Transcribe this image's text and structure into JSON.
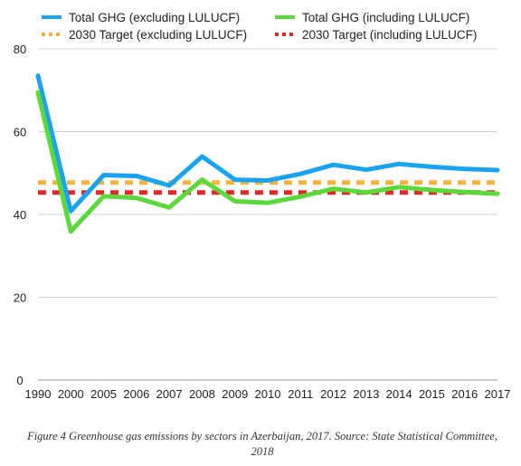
{
  "chart_data": {
    "type": "line",
    "title": "",
    "xlabel": "",
    "ylabel": "",
    "categories": [
      "1990",
      "2000",
      "2005",
      "2006",
      "2007",
      "2008",
      "2009",
      "2010",
      "2011",
      "2012",
      "2013",
      "2014",
      "2015",
      "2016",
      "2017"
    ],
    "ylim": [
      0,
      80
    ],
    "yticks": [
      "0",
      "20",
      "40",
      "60",
      "80"
    ],
    "grid": true,
    "legend_position": "top",
    "series": [
      {
        "name": "Total GHG (excluding LULUCF)",
        "color": "#1aa3f0",
        "style": "solid",
        "values": [
          73.5,
          40.8,
          49.5,
          49.3,
          47.0,
          54.0,
          48.4,
          48.2,
          49.8,
          52.0,
          50.8,
          52.2,
          51.5,
          51.0,
          50.7
        ]
      },
      {
        "name": "Total GHG (including LULUCF)",
        "color": "#5cd93a",
        "style": "solid",
        "values": [
          69.5,
          35.9,
          44.4,
          44.0,
          41.7,
          48.4,
          43.2,
          42.8,
          44.3,
          46.2,
          45.3,
          46.6,
          45.9,
          45.4,
          45.0
        ]
      },
      {
        "name": "2030 Target (excluding LULUCF)",
        "color": "#f6b33c",
        "style": "dashed",
        "values": [
          47.7,
          47.7,
          47.7,
          47.7,
          47.7,
          47.7,
          47.7,
          47.7,
          47.7,
          47.7,
          47.7,
          47.7,
          47.7,
          47.7,
          47.7
        ]
      },
      {
        "name": "2030 Target (including LULUCF)",
        "color": "#e82626",
        "style": "dashed",
        "values": [
          45.3,
          45.3,
          45.3,
          45.3,
          45.3,
          45.3,
          45.3,
          45.3,
          45.3,
          45.3,
          45.3,
          45.3,
          45.3,
          45.3,
          45.3
        ]
      }
    ]
  },
  "caption": "Figure 4 Greenhouse gas emissions by sectors in Azerbaijan, 2017. Source: State Statistical Committee, 2018"
}
